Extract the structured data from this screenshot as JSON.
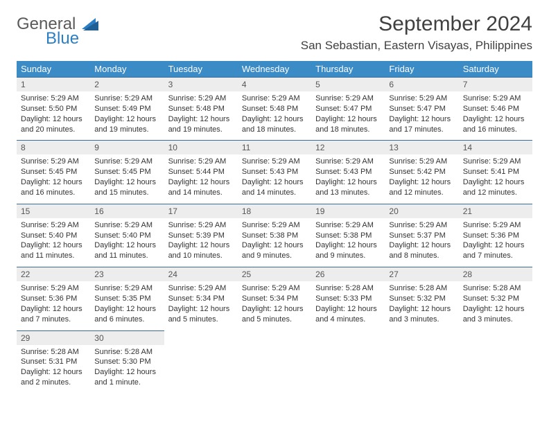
{
  "brand": {
    "general": "General",
    "blue": "Blue"
  },
  "title": "September 2024",
  "location": "San Sebastian, Eastern Visayas, Philippines",
  "colors": {
    "header_bg": "#3b8bc7",
    "header_text": "#ffffff",
    "daynum_bg": "#ededed",
    "week_border": "#3b6d94",
    "logo_blue": "#2c7ec4",
    "text": "#333333"
  },
  "day_names": [
    "Sunday",
    "Monday",
    "Tuesday",
    "Wednesday",
    "Thursday",
    "Friday",
    "Saturday"
  ],
  "days": [
    {
      "n": "1",
      "sunrise": "5:29 AM",
      "sunset": "5:50 PM",
      "daylight": "12 hours and 20 minutes."
    },
    {
      "n": "2",
      "sunrise": "5:29 AM",
      "sunset": "5:49 PM",
      "daylight": "12 hours and 19 minutes."
    },
    {
      "n": "3",
      "sunrise": "5:29 AM",
      "sunset": "5:48 PM",
      "daylight": "12 hours and 19 minutes."
    },
    {
      "n": "4",
      "sunrise": "5:29 AM",
      "sunset": "5:48 PM",
      "daylight": "12 hours and 18 minutes."
    },
    {
      "n": "5",
      "sunrise": "5:29 AM",
      "sunset": "5:47 PM",
      "daylight": "12 hours and 18 minutes."
    },
    {
      "n": "6",
      "sunrise": "5:29 AM",
      "sunset": "5:47 PM",
      "daylight": "12 hours and 17 minutes."
    },
    {
      "n": "7",
      "sunrise": "5:29 AM",
      "sunset": "5:46 PM",
      "daylight": "12 hours and 16 minutes."
    },
    {
      "n": "8",
      "sunrise": "5:29 AM",
      "sunset": "5:45 PM",
      "daylight": "12 hours and 16 minutes."
    },
    {
      "n": "9",
      "sunrise": "5:29 AM",
      "sunset": "5:45 PM",
      "daylight": "12 hours and 15 minutes."
    },
    {
      "n": "10",
      "sunrise": "5:29 AM",
      "sunset": "5:44 PM",
      "daylight": "12 hours and 14 minutes."
    },
    {
      "n": "11",
      "sunrise": "5:29 AM",
      "sunset": "5:43 PM",
      "daylight": "12 hours and 14 minutes."
    },
    {
      "n": "12",
      "sunrise": "5:29 AM",
      "sunset": "5:43 PM",
      "daylight": "12 hours and 13 minutes."
    },
    {
      "n": "13",
      "sunrise": "5:29 AM",
      "sunset": "5:42 PM",
      "daylight": "12 hours and 12 minutes."
    },
    {
      "n": "14",
      "sunrise": "5:29 AM",
      "sunset": "5:41 PM",
      "daylight": "12 hours and 12 minutes."
    },
    {
      "n": "15",
      "sunrise": "5:29 AM",
      "sunset": "5:40 PM",
      "daylight": "12 hours and 11 minutes."
    },
    {
      "n": "16",
      "sunrise": "5:29 AM",
      "sunset": "5:40 PM",
      "daylight": "12 hours and 11 minutes."
    },
    {
      "n": "17",
      "sunrise": "5:29 AM",
      "sunset": "5:39 PM",
      "daylight": "12 hours and 10 minutes."
    },
    {
      "n": "18",
      "sunrise": "5:29 AM",
      "sunset": "5:38 PM",
      "daylight": "12 hours and 9 minutes."
    },
    {
      "n": "19",
      "sunrise": "5:29 AM",
      "sunset": "5:38 PM",
      "daylight": "12 hours and 9 minutes."
    },
    {
      "n": "20",
      "sunrise": "5:29 AM",
      "sunset": "5:37 PM",
      "daylight": "12 hours and 8 minutes."
    },
    {
      "n": "21",
      "sunrise": "5:29 AM",
      "sunset": "5:36 PM",
      "daylight": "12 hours and 7 minutes."
    },
    {
      "n": "22",
      "sunrise": "5:29 AM",
      "sunset": "5:36 PM",
      "daylight": "12 hours and 7 minutes."
    },
    {
      "n": "23",
      "sunrise": "5:29 AM",
      "sunset": "5:35 PM",
      "daylight": "12 hours and 6 minutes."
    },
    {
      "n": "24",
      "sunrise": "5:29 AM",
      "sunset": "5:34 PM",
      "daylight": "12 hours and 5 minutes."
    },
    {
      "n": "25",
      "sunrise": "5:29 AM",
      "sunset": "5:34 PM",
      "daylight": "12 hours and 5 minutes."
    },
    {
      "n": "26",
      "sunrise": "5:28 AM",
      "sunset": "5:33 PM",
      "daylight": "12 hours and 4 minutes."
    },
    {
      "n": "27",
      "sunrise": "5:28 AM",
      "sunset": "5:32 PM",
      "daylight": "12 hours and 3 minutes."
    },
    {
      "n": "28",
      "sunrise": "5:28 AM",
      "sunset": "5:32 PM",
      "daylight": "12 hours and 3 minutes."
    },
    {
      "n": "29",
      "sunrise": "5:28 AM",
      "sunset": "5:31 PM",
      "daylight": "12 hours and 2 minutes."
    },
    {
      "n": "30",
      "sunrise": "5:28 AM",
      "sunset": "5:30 PM",
      "daylight": "12 hours and 1 minute."
    }
  ],
  "labels": {
    "sunrise": "Sunrise: ",
    "sunset": "Sunset: ",
    "daylight": "Daylight: "
  }
}
